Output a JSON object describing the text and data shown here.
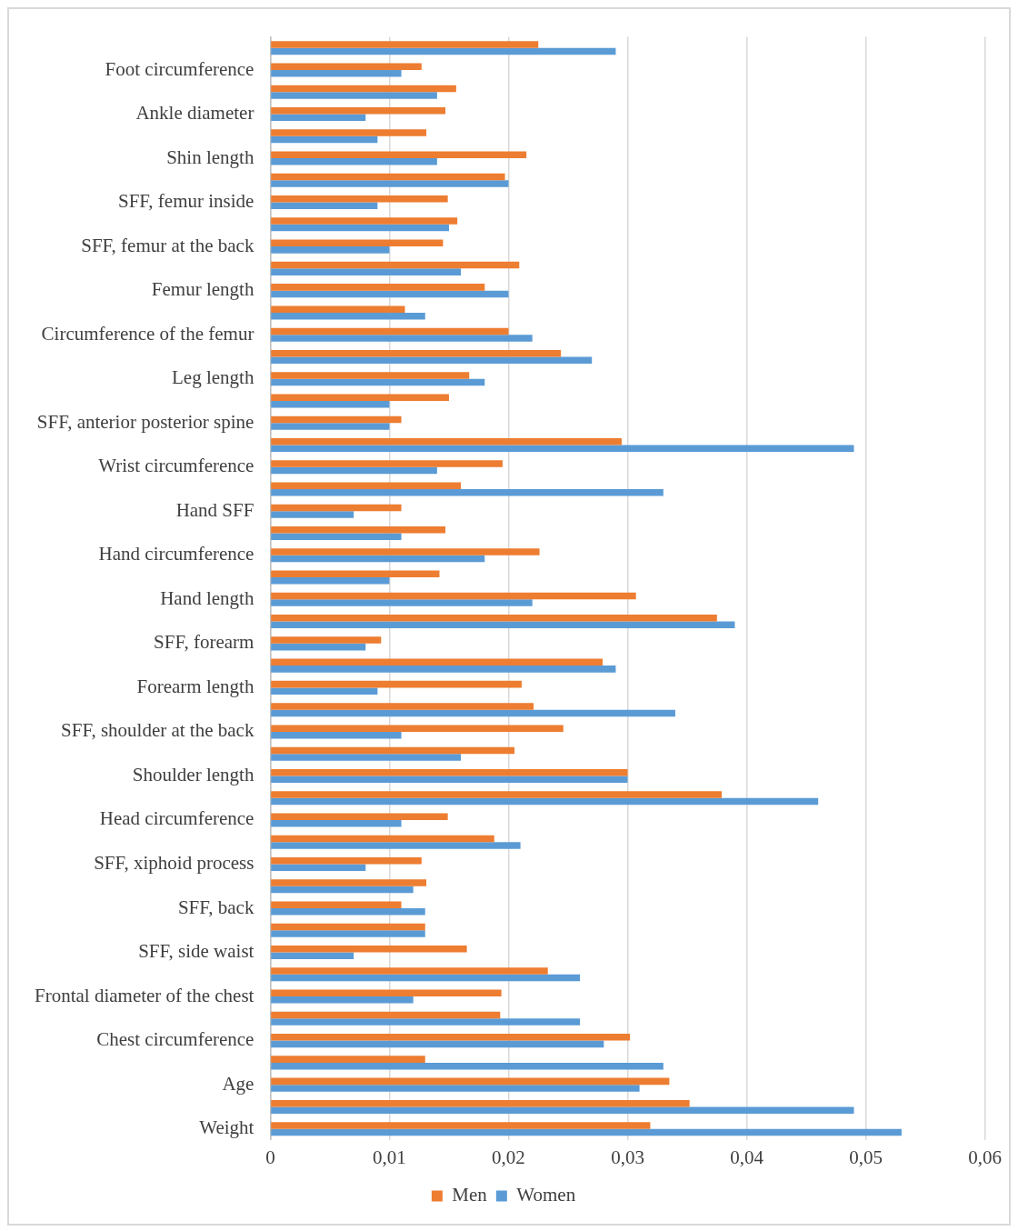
{
  "chart_data": {
    "type": "bar",
    "orientation": "horizontal",
    "categories": [
      null,
      "Foot circumference",
      null,
      "Ankle diameter",
      null,
      "Shin length",
      null,
      "SFF, femur inside",
      null,
      "SFF, femur at the back",
      null,
      "Femur length",
      null,
      "Circumference of the femur",
      null,
      "Leg length",
      null,
      "SFF, anterior posterior spine",
      null,
      "Wrist circumference",
      null,
      "Hand SFF",
      null,
      "Hand circumference",
      null,
      "Hand length",
      null,
      "SFF, forearm",
      null,
      "Forearm length",
      null,
      "SFF, shoulder at the back",
      null,
      "Shoulder length",
      null,
      "Head circumference",
      null,
      "SFF, xiphoid process",
      null,
      "SFF, back",
      null,
      "SFF, side waist",
      null,
      "Frontal diameter of the chest",
      null,
      "Chest circumference",
      null,
      "Age",
      null,
      "Weight"
    ],
    "series": [
      {
        "name": "Men",
        "color": "#ed7d31",
        "values": [
          0.0225,
          0.0127,
          0.0156,
          0.0147,
          0.0131,
          0.0215,
          0.0197,
          0.0149,
          0.0157,
          0.0145,
          0.0209,
          0.018,
          0.0113,
          0.02,
          0.0244,
          0.0167,
          0.015,
          0.011,
          0.0295,
          0.0195,
          0.016,
          0.011,
          0.0147,
          0.0226,
          0.0142,
          0.0307,
          0.0375,
          0.0093,
          0.0279,
          0.0211,
          0.0221,
          0.0246,
          0.0205,
          0.03,
          0.0379,
          0.0149,
          0.0188,
          0.0127,
          0.0131,
          0.011,
          0.013,
          0.0165,
          0.0233,
          0.0194,
          0.0193,
          0.0302,
          0.013,
          0.0335,
          0.0352,
          0.0319
        ]
      },
      {
        "name": "Women",
        "color": "#5b9bd5",
        "values": [
          0.029,
          0.011,
          0.014,
          0.008,
          0.009,
          0.014,
          0.02,
          0.009,
          0.015,
          0.01,
          0.016,
          0.02,
          0.013,
          0.022,
          0.027,
          0.018,
          0.01,
          0.01,
          0.049,
          0.014,
          0.033,
          0.007,
          0.011,
          0.018,
          0.01,
          0.022,
          0.039,
          0.008,
          0.029,
          0.009,
          0.034,
          0.011,
          0.016,
          0.03,
          0.046,
          0.011,
          0.021,
          0.008,
          0.012,
          0.013,
          0.013,
          0.007,
          0.026,
          0.012,
          0.026,
          0.028,
          0.033,
          0.031,
          0.049,
          0.053
        ]
      }
    ],
    "xlim": [
      0,
      0.06
    ],
    "xticks": [
      0,
      {
        "value": 0.01,
        "label": "0,01"
      },
      {
        "value": 0.02,
        "label": "0,02"
      },
      {
        "value": 0.03,
        "label": "0,03"
      },
      {
        "value": 0.04,
        "label": "0,04"
      },
      {
        "value": 0.05,
        "label": "0,05"
      },
      {
        "value": 0.06,
        "label": "0,06"
      }
    ],
    "grid": "x",
    "legend": "bottom"
  }
}
